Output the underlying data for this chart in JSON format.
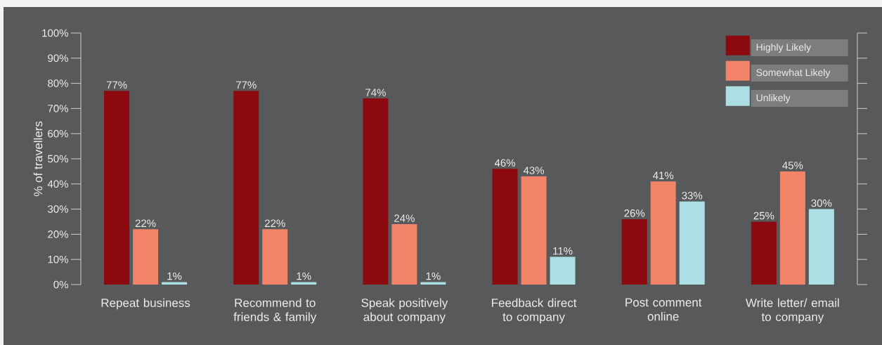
{
  "chart_data": {
    "type": "bar",
    "ylabel": "% of travellers",
    "categories": [
      "Repeat business",
      "Recommend to friends & family",
      "Speak positively about company",
      "Feedback direct to company",
      "Post comment online",
      "Write letter/ email to company"
    ],
    "series": [
      {
        "name": "Highly Likely",
        "color": "#8c0a0f",
        "values": [
          77,
          77,
          74,
          46,
          26,
          25
        ],
        "value_labels": [
          "77%",
          "77%",
          "74%",
          "46%",
          "26%",
          "25%"
        ]
      },
      {
        "name": "Somewhat Likely",
        "color": "#f3846a",
        "values": [
          22,
          22,
          24,
          43,
          41,
          45
        ],
        "value_labels": [
          "22%",
          "22%",
          "24%",
          "43%",
          "41%",
          "45%"
        ]
      },
      {
        "name": "Unlikely",
        "color": "#acdfe3",
        "values": [
          1,
          1,
          1,
          11,
          33,
          30
        ],
        "value_labels": [
          "1%",
          "1%",
          "1%",
          "11%",
          "33%",
          "30%"
        ]
      }
    ],
    "ylim": [
      0,
      100
    ],
    "yticks": [
      {
        "value": 0,
        "label": "0%"
      },
      {
        "value": 10,
        "label": "10%"
      },
      {
        "value": 20,
        "label": "20%"
      },
      {
        "value": 30,
        "label": "30%"
      },
      {
        "value": 40,
        "label": "40%"
      },
      {
        "value": 50,
        "label": "50%"
      },
      {
        "value": 60,
        "label": "60%"
      },
      {
        "value": 70,
        "label": "70%"
      },
      {
        "value": 80,
        "label": "80%"
      },
      {
        "value": 90,
        "label": "90%"
      },
      {
        "value": 100,
        "label": "100%"
      }
    ],
    "grid": false,
    "legend": "top right"
  }
}
